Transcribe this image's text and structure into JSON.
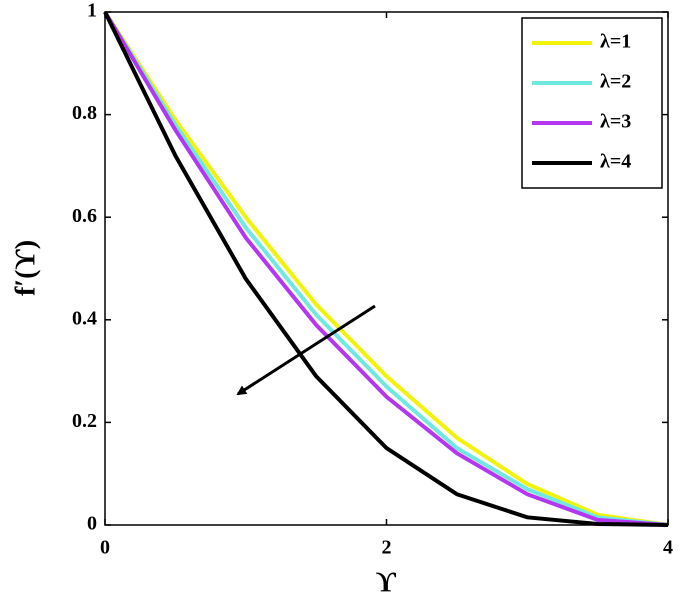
{
  "chart_data": {
    "type": "line",
    "x": [
      0,
      0.5,
      1,
      1.5,
      2,
      2.5,
      3,
      3.5,
      4
    ],
    "series": [
      {
        "name": "λ=1",
        "color": "#f2f20a",
        "values": [
          1,
          0.79,
          0.6,
          0.43,
          0.29,
          0.17,
          0.08,
          0.02,
          0
        ]
      },
      {
        "name": "λ=2",
        "color": "#6ee8e0",
        "values": [
          1,
          0.78,
          0.58,
          0.41,
          0.27,
          0.15,
          0.07,
          0.015,
          0
        ]
      },
      {
        "name": "λ=3",
        "color": "#b436f0",
        "values": [
          1,
          0.77,
          0.56,
          0.39,
          0.25,
          0.14,
          0.06,
          0.01,
          0
        ]
      },
      {
        "name": "λ=4",
        "color": "#000000",
        "values": [
          1,
          0.72,
          0.48,
          0.29,
          0.15,
          0.06,
          0.015,
          0.002,
          0
        ]
      }
    ],
    "xlabel": "ϒ",
    "ylabel": "f′(ϒ)",
    "xlim": [
      0,
      4
    ],
    "ylim": [
      0,
      1
    ],
    "xticks": [
      0,
      2,
      4
    ],
    "yticks": [
      0,
      0.2,
      0.4,
      0.6,
      0.8,
      1
    ],
    "legend": "upper right"
  }
}
